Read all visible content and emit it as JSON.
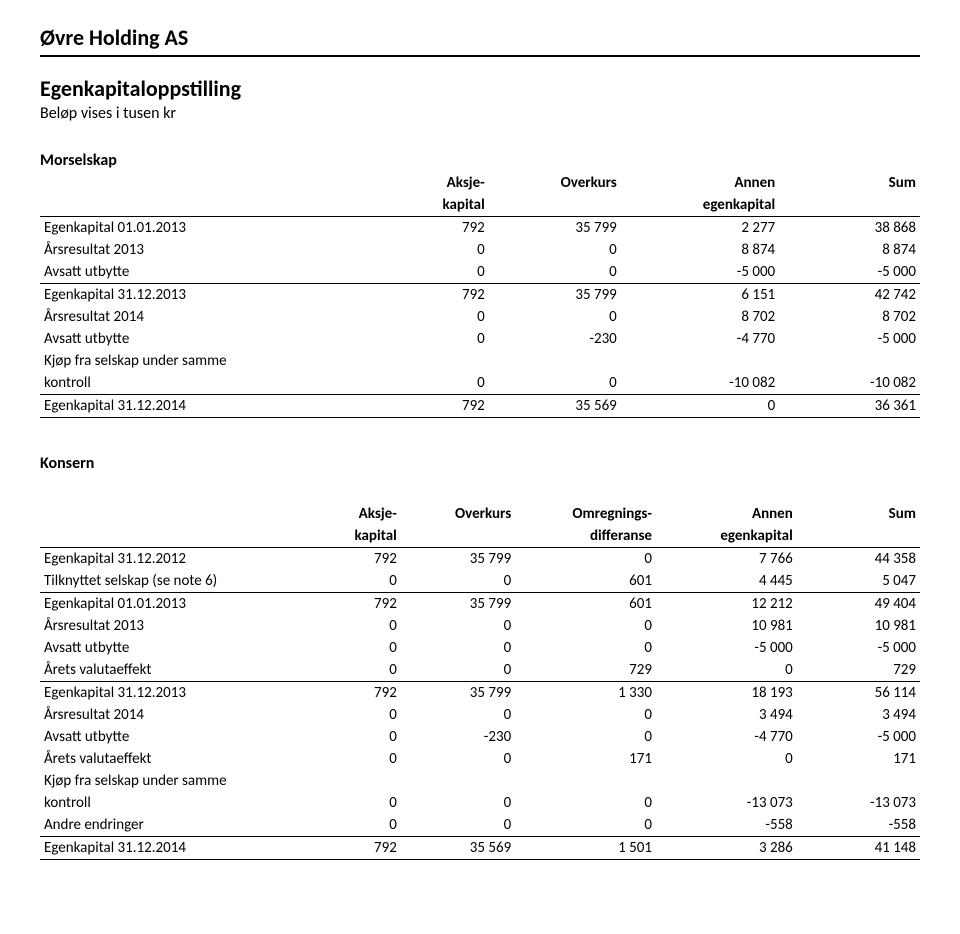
{
  "company": "Øvre Holding AS",
  "title": "Egenkapitaloppstilling",
  "subtitle": "Beløp vises i tusen kr",
  "morselskap": {
    "label": "Morselskap",
    "columns": {
      "c0": "",
      "c1_l1": "Aksje-",
      "c1_l2": "kapital",
      "c2": "Overkurs",
      "c3_l1": "Annen",
      "c3_l2": "egenkapital",
      "c4": "Sum"
    },
    "rows": [
      {
        "label": "Egenkapital 01.01.2013",
        "c1": "792",
        "c2": "35 799",
        "c3": "2 277",
        "c4": "38 868",
        "line": false
      },
      {
        "label": "Årsresultat 2013",
        "c1": "0",
        "c2": "0",
        "c3": "8 874",
        "c4": "8 874",
        "line": false
      },
      {
        "label": "Avsatt utbytte",
        "c1": "0",
        "c2": "0",
        "c3": "-5 000",
        "c4": "-5 000",
        "line": true
      },
      {
        "label": "Egenkapital 31.12.2013",
        "c1": "792",
        "c2": "35 799",
        "c3": "6 151",
        "c4": "42 742",
        "line": false
      },
      {
        "label": "Årsresultat 2014",
        "c1": "0",
        "c2": "0",
        "c3": "8 702",
        "c4": "8 702",
        "line": false
      },
      {
        "label": "Avsatt utbytte",
        "c1": "0",
        "c2": "-230",
        "c3": "-4 770",
        "c4": "-5 000",
        "line": false
      },
      {
        "label": "Kjøp fra selskap under samme",
        "label2": "kontroll",
        "c1": "0",
        "c2": "0",
        "c3": "-10 082",
        "c4": "-10 082",
        "line": true,
        "twoLine": true
      },
      {
        "label": "Egenkapital 31.12.2014",
        "c1": "792",
        "c2": "35 569",
        "c3": "0",
        "c4": "36 361",
        "line": true
      }
    ]
  },
  "konsern": {
    "label": "Konsern",
    "columns": {
      "c0": "",
      "c1_l1": "Aksje-",
      "c1_l2": "kapital",
      "c2": "Overkurs",
      "c3_l1": "Omregnings-",
      "c3_l2": "differanse",
      "c4_l1": "Annen",
      "c4_l2": "egenkapital",
      "c5": "Sum"
    },
    "rows": [
      {
        "label": "Egenkapital 31.12.2012",
        "c1": "792",
        "c2": "35 799",
        "c3": "0",
        "c4": "7 766",
        "c5": "44 358",
        "line": false
      },
      {
        "label": "Tilknyttet selskap (se note 6)",
        "c1": "0",
        "c2": "0",
        "c3": "601",
        "c4": "4 445",
        "c5": "5 047",
        "line": true
      },
      {
        "label": "Egenkapital 01.01.2013",
        "c1": "792",
        "c2": "35 799",
        "c3": "601",
        "c4": "12 212",
        "c5": "49 404",
        "line": false
      },
      {
        "label": "Årsresultat 2013",
        "c1": "0",
        "c2": "0",
        "c3": "0",
        "c4": "10 981",
        "c5": "10 981",
        "line": false
      },
      {
        "label": "Avsatt utbytte",
        "c1": "0",
        "c2": "0",
        "c3": "0",
        "c4": "-5 000",
        "c5": "-5 000",
        "line": false
      },
      {
        "label": "Årets valutaeffekt",
        "c1": "0",
        "c2": "0",
        "c3": "729",
        "c4": "0",
        "c5": "729",
        "line": true
      },
      {
        "label": "Egenkapital 31.12.2013",
        "c1": "792",
        "c2": "35 799",
        "c3": "1 330",
        "c4": "18 193",
        "c5": "56 114",
        "line": false
      },
      {
        "label": "Årsresultat 2014",
        "c1": "0",
        "c2": "0",
        "c3": "0",
        "c4": "3 494",
        "c5": "3 494",
        "line": false
      },
      {
        "label": "Avsatt utbytte",
        "c1": "0",
        "c2": "-230",
        "c3": "0",
        "c4": "-4 770",
        "c5": "-5 000",
        "line": false
      },
      {
        "label": "Årets valutaeffekt",
        "c1": "0",
        "c2": "0",
        "c3": "171",
        "c4": "0",
        "c5": "171",
        "line": false
      },
      {
        "label": "Kjøp fra selskap under samme",
        "label2": "kontroll",
        "c1": "0",
        "c2": "0",
        "c3": "0",
        "c4": "-13 073",
        "c5": "-13 073",
        "line": false,
        "twoLine": true
      },
      {
        "label": "Andre endringer",
        "c1": "0",
        "c2": "0",
        "c3": "0",
        "c4": "-558",
        "c5": "-558",
        "line": true
      },
      {
        "label": "Egenkapital 31.12.2014",
        "c1": "792",
        "c2": "35 569",
        "c3": "1 501",
        "c4": "3 286",
        "c5": "41 148",
        "line": true
      }
    ]
  },
  "layout": {
    "morselskap_col_widths": [
      "38%",
      "13%",
      "15%",
      "18%",
      "16%"
    ],
    "konsern_col_widths": [
      "30%",
      "11%",
      "13%",
      "16%",
      "16%",
      "14%"
    ]
  }
}
